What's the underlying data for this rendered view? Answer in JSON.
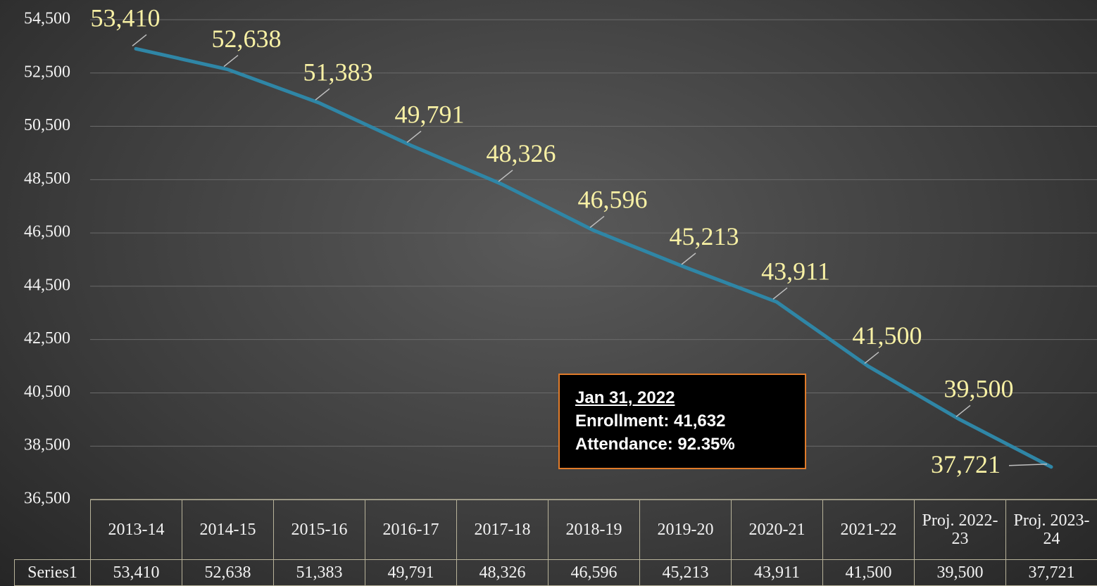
{
  "chart_data": {
    "type": "line",
    "categories": [
      "2013-14",
      "2014-15",
      "2015-16",
      "2016-17",
      "2017-18",
      "2018-19",
      "2019-20",
      "2020-21",
      "2021-22",
      "Proj. 2022-23",
      "Proj. 2023-24"
    ],
    "series": [
      {
        "name": "Series1",
        "color": "#2f86a6",
        "values": [
          53410,
          52638,
          51383,
          49791,
          48326,
          46596,
          45213,
          43911,
          41500,
          39500,
          37721
        ],
        "value_labels": [
          "53,410",
          "52,638",
          "51,383",
          "49,791",
          "48,326",
          "46,596",
          "45,213",
          "43,911",
          "41,500",
          "39,500",
          "37,721"
        ]
      }
    ],
    "ylim": [
      36500,
      54500
    ],
    "yticks": [
      {
        "value": 36500,
        "label": "36,500"
      },
      {
        "value": 38500,
        "label": "38,500"
      },
      {
        "value": 40500,
        "label": "40,500"
      },
      {
        "value": 42500,
        "label": "42,500"
      },
      {
        "value": 44500,
        "label": "44,500"
      },
      {
        "value": 46500,
        "label": "46,500"
      },
      {
        "value": 48500,
        "label": "48,500"
      },
      {
        "value": 50500,
        "label": "50,500"
      },
      {
        "value": 52500,
        "label": "52,500"
      },
      {
        "value": 54500,
        "label": "54,500"
      }
    ],
    "grid": true,
    "annotation": {
      "heading": "Jan 31, 2022",
      "lines": [
        "Enrollment: 41,632",
        "Attendance:  92.35%"
      ]
    }
  }
}
